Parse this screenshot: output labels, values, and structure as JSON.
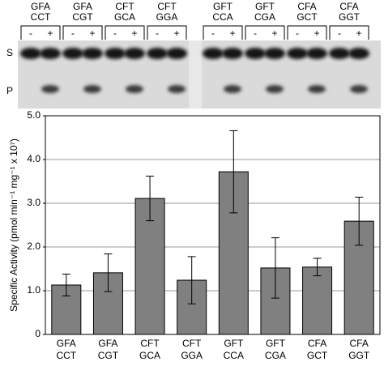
{
  "gel": {
    "signs": [
      "-",
      "+"
    ],
    "rows": [
      "S",
      "P"
    ]
  },
  "chart_data": {
    "type": "bar",
    "categories": [
      [
        "GFA",
        "CCT"
      ],
      [
        "GFA",
        "CGT"
      ],
      [
        "CFT",
        "GCA"
      ],
      [
        "CFT",
        "GGA"
      ],
      [
        "GFT",
        "CCA"
      ],
      [
        "GFT",
        "CGA"
      ],
      [
        "CFA",
        "GCT"
      ],
      [
        "CFA",
        "GGT"
      ]
    ],
    "values": [
      1.13,
      1.41,
      3.11,
      1.24,
      3.72,
      1.52,
      1.54,
      2.59
    ],
    "errors": [
      0.25,
      0.43,
      0.51,
      0.54,
      0.94,
      0.69,
      0.2,
      0.55
    ],
    "color": "#808080",
    "ylabel": "Specific Activity (pmol min⁻¹ mg⁻¹ x 10⁷)",
    "ylim": [
      0,
      5
    ],
    "yticks": [
      0,
      {
        "value": 1,
        "label": "1.0"
      },
      {
        "value": 2,
        "label": "2.0"
      },
      {
        "value": 3,
        "label": "3.0"
      },
      {
        "value": 4,
        "label": "4.0"
      },
      {
        "value": 5,
        "label": "5.0"
      }
    ],
    "grid": true
  }
}
